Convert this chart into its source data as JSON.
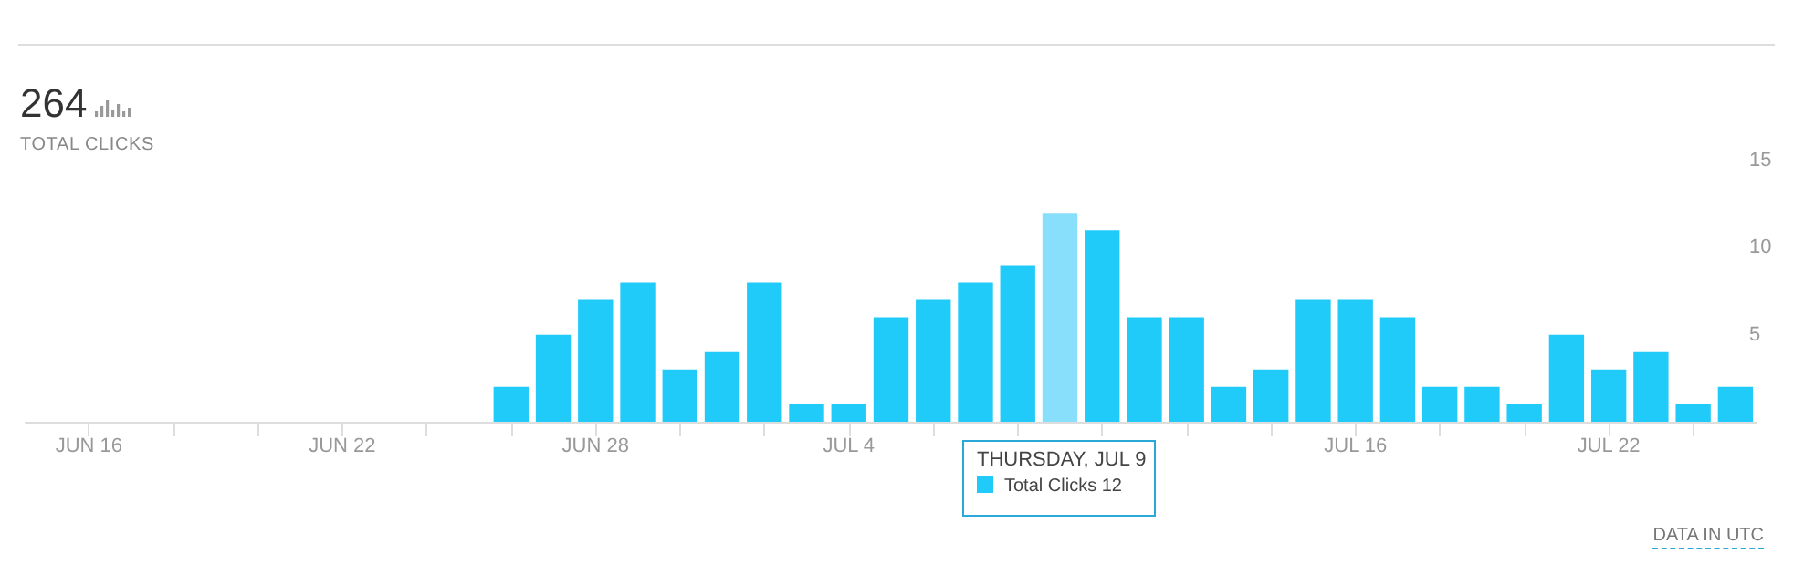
{
  "chart_data": {
    "type": "bar",
    "title": "264",
    "subtitle": "TOTAL CLICKS",
    "categories": [
      null,
      "JUN 16",
      null,
      null,
      null,
      null,
      null,
      "JUN 22",
      null,
      null,
      null,
      null,
      null,
      "JUN 28",
      null,
      null,
      null,
      null,
      null,
      "JUL 4",
      null,
      null,
      null,
      null,
      null,
      null,
      null,
      null,
      null,
      null,
      null,
      "JUL 16",
      null,
      null,
      null,
      null,
      null,
      "JUL 22",
      null,
      null,
      null
    ],
    "series": [
      {
        "color": "#21cbf9",
        "values": [
          0,
          0,
          0,
          0,
          0,
          0,
          0,
          0,
          0,
          0,
          0,
          2,
          5,
          7,
          8,
          3,
          4,
          8,
          1,
          1,
          6,
          7,
          8,
          9,
          12,
          11,
          6,
          6,
          2,
          3,
          7,
          7,
          6,
          2,
          2,
          1,
          5,
          3,
          4,
          1,
          2
        ],
        "colors": [
          "#21cbf9",
          "#21cbf9",
          "#21cbf9",
          "#21cbf9",
          "#21cbf9",
          "#21cbf9",
          "#21cbf9",
          "#21cbf9",
          "#21cbf9",
          "#21cbf9",
          "#21cbf9",
          "#21cbf9",
          "#21cbf9",
          "#21cbf9",
          "#21cbf9",
          "#21cbf9",
          "#21cbf9",
          "#21cbf9",
          "#21cbf9",
          "#21cbf9",
          "#21cbf9",
          "#21cbf9",
          "#21cbf9",
          "#21cbf9",
          "#88dffb",
          "#21cbf9",
          "#21cbf9",
          "#21cbf9",
          "#21cbf9",
          "#21cbf9",
          "#21cbf9",
          "#21cbf9",
          "#21cbf9",
          "#21cbf9",
          "#21cbf9",
          "#21cbf9",
          "#21cbf9",
          "#21cbf9",
          "#21cbf9",
          "#21cbf9",
          "#21cbf9"
        ]
      }
    ],
    "ylim": [
      0,
      15
    ],
    "yticks": [
      5,
      10,
      15
    ],
    "grid": false,
    "annotations": [
      "THURSDAY, JUL 9",
      "Total Clicks 12",
      "DATA IN UTC"
    ]
  }
}
